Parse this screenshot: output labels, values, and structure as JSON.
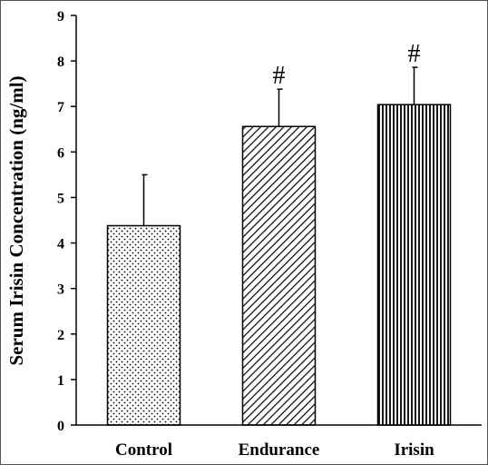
{
  "chart_data": {
    "type": "bar",
    "title": "",
    "xlabel": "",
    "ylabel": "Serum Irisin Concentration (ng/ml)",
    "ylim": [
      0,
      9
    ],
    "yticks": [
      "0",
      "1",
      "2",
      "3",
      "4",
      "5",
      "6",
      "7",
      "8",
      "9"
    ],
    "categories": [
      "Control",
      "Endurance",
      "Irisin"
    ],
    "values": [
      4.38,
      6.56,
      7.04
    ],
    "errors": [
      1.12,
      0.82,
      0.82
    ],
    "patterns": [
      "dots",
      "diagonal-hatch",
      "vertical-lines"
    ],
    "annotations": [
      "",
      "#",
      "#"
    ],
    "grid": false,
    "legend": "none",
    "colors": {
      "bar_fill": "#ffffff",
      "stroke": "#000000"
    }
  }
}
